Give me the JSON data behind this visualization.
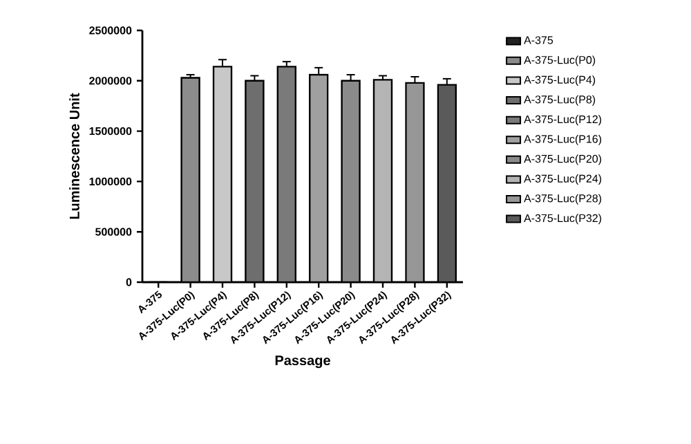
{
  "chart_data": {
    "type": "bar",
    "xlabel": "Passage",
    "ylabel": "Luminescence Unit",
    "categories": [
      "A-375",
      "A-375-Luc(P0)",
      "A-375-Luc(P4)",
      "A-375-Luc(P8)",
      "A-375-Luc(P12)",
      "A-375-Luc(P16)",
      "A-375-Luc(P20)",
      "A-375-Luc(P24)",
      "A-375-Luc(P28)",
      "A-375-Luc(P32)"
    ],
    "series": [
      {
        "name": "A-375",
        "color": "#222222",
        "values": [
          0,
          null,
          null,
          null,
          null,
          null,
          null,
          null,
          null,
          null
        ],
        "errors": [
          null,
          null,
          null,
          null,
          null,
          null,
          null,
          null,
          null,
          null
        ]
      },
      {
        "name": "A-375-Luc(P0)",
        "color": "#8c8c8c",
        "values": [
          null,
          2030000,
          null,
          null,
          null,
          null,
          null,
          null,
          null,
          null
        ],
        "errors": [
          null,
          30000,
          null,
          null,
          null,
          null,
          null,
          null,
          null,
          null
        ]
      },
      {
        "name": "A-375-Luc(P4)",
        "color": "#c8c8c8",
        "values": [
          null,
          null,
          2140000,
          null,
          null,
          null,
          null,
          null,
          null,
          null
        ],
        "errors": [
          null,
          null,
          70000,
          null,
          null,
          null,
          null,
          null,
          null,
          null
        ]
      },
      {
        "name": "A-375-Luc(P8)",
        "color": "#6e6e6e",
        "values": [
          null,
          null,
          null,
          2000000,
          null,
          null,
          null,
          null,
          null,
          null
        ],
        "errors": [
          null,
          null,
          null,
          50000,
          null,
          null,
          null,
          null,
          null,
          null
        ]
      },
      {
        "name": "A-375-Luc(P12)",
        "color": "#7a7a7a",
        "values": [
          null,
          null,
          null,
          null,
          2140000,
          null,
          null,
          null,
          null,
          null
        ],
        "errors": [
          null,
          null,
          null,
          null,
          50000,
          null,
          null,
          null,
          null,
          null
        ]
      },
      {
        "name": "A-375-Luc(P16)",
        "color": "#a0a0a0",
        "values": [
          null,
          null,
          null,
          null,
          null,
          2060000,
          null,
          null,
          null,
          null
        ],
        "errors": [
          null,
          null,
          null,
          null,
          null,
          70000,
          null,
          null,
          null,
          null
        ]
      },
      {
        "name": "A-375-Luc(P20)",
        "color": "#8a8a8a",
        "values": [
          null,
          null,
          null,
          null,
          null,
          null,
          2000000,
          null,
          null,
          null
        ],
        "errors": [
          null,
          null,
          null,
          null,
          null,
          null,
          60000,
          null,
          null,
          null
        ]
      },
      {
        "name": "A-375-Luc(P24)",
        "color": "#b4b4b4",
        "values": [
          null,
          null,
          null,
          null,
          null,
          null,
          null,
          2010000,
          null,
          null
        ],
        "errors": [
          null,
          null,
          null,
          null,
          null,
          null,
          null,
          40000,
          null,
          null
        ]
      },
      {
        "name": "A-375-Luc(P28)",
        "color": "#969696",
        "values": [
          null,
          null,
          null,
          null,
          null,
          null,
          null,
          null,
          1980000,
          null
        ],
        "errors": [
          null,
          null,
          null,
          null,
          null,
          null,
          null,
          null,
          60000,
          null
        ]
      },
      {
        "name": "A-375-Luc(P32)",
        "color": "#5a5a5a",
        "values": [
          null,
          null,
          null,
          null,
          null,
          null,
          null,
          null,
          null,
          1960000
        ],
        "errors": [
          null,
          null,
          null,
          null,
          null,
          null,
          null,
          null,
          null,
          60000
        ]
      }
    ],
    "ylim": [
      0,
      2500000
    ],
    "yticks": [
      0,
      500000,
      1000000,
      1500000,
      2000000,
      2500000
    ],
    "legend": "right"
  }
}
